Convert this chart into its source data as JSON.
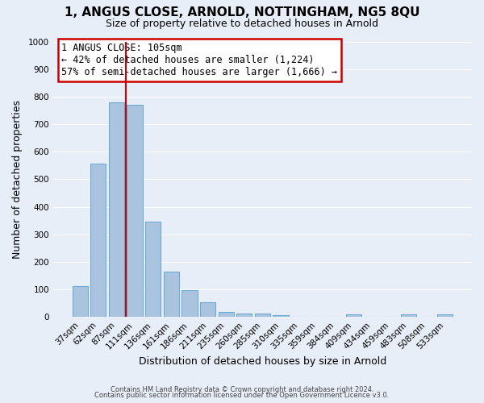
{
  "title": "1, ANGUS CLOSE, ARNOLD, NOTTINGHAM, NG5 8QU",
  "subtitle": "Size of property relative to detached houses in Arnold",
  "xlabel": "Distribution of detached houses by size in Arnold",
  "ylabel": "Number of detached properties",
  "categories": [
    "37sqm",
    "62sqm",
    "87sqm",
    "111sqm",
    "136sqm",
    "161sqm",
    "186sqm",
    "211sqm",
    "235sqm",
    "260sqm",
    "285sqm",
    "310sqm",
    "335sqm",
    "359sqm",
    "384sqm",
    "409sqm",
    "434sqm",
    "459sqm",
    "483sqm",
    "508sqm",
    "533sqm"
  ],
  "values": [
    113,
    558,
    778,
    770,
    345,
    165,
    97,
    55,
    18,
    12,
    12,
    8,
    0,
    0,
    0,
    10,
    0,
    0,
    10,
    0,
    10
  ],
  "bar_color": "#aac4e0",
  "bar_edgecolor": "#6aaad4",
  "background_color": "#e8eef8",
  "grid_color": "#ffffff",
  "vline_x": 2.5,
  "vline_color": "#cc0000",
  "annotation_text": "1 ANGUS CLOSE: 105sqm\n← 42% of detached houses are smaller (1,224)\n57% of semi-detached houses are larger (1,666) →",
  "annotation_box_color": "#ffffff",
  "annotation_box_edgecolor": "#cc0000",
  "footer_line1": "Contains HM Land Registry data © Crown copyright and database right 2024.",
  "footer_line2": "Contains public sector information licensed under the Open Government Licence v3.0.",
  "ylim": [
    0,
    1000
  ],
  "yticks": [
    0,
    100,
    200,
    300,
    400,
    500,
    600,
    700,
    800,
    900,
    1000
  ],
  "title_fontsize": 11,
  "subtitle_fontsize": 9,
  "ylabel_fontsize": 9,
  "xlabel_fontsize": 9,
  "tick_fontsize": 7.5,
  "annotation_fontsize": 8.5
}
